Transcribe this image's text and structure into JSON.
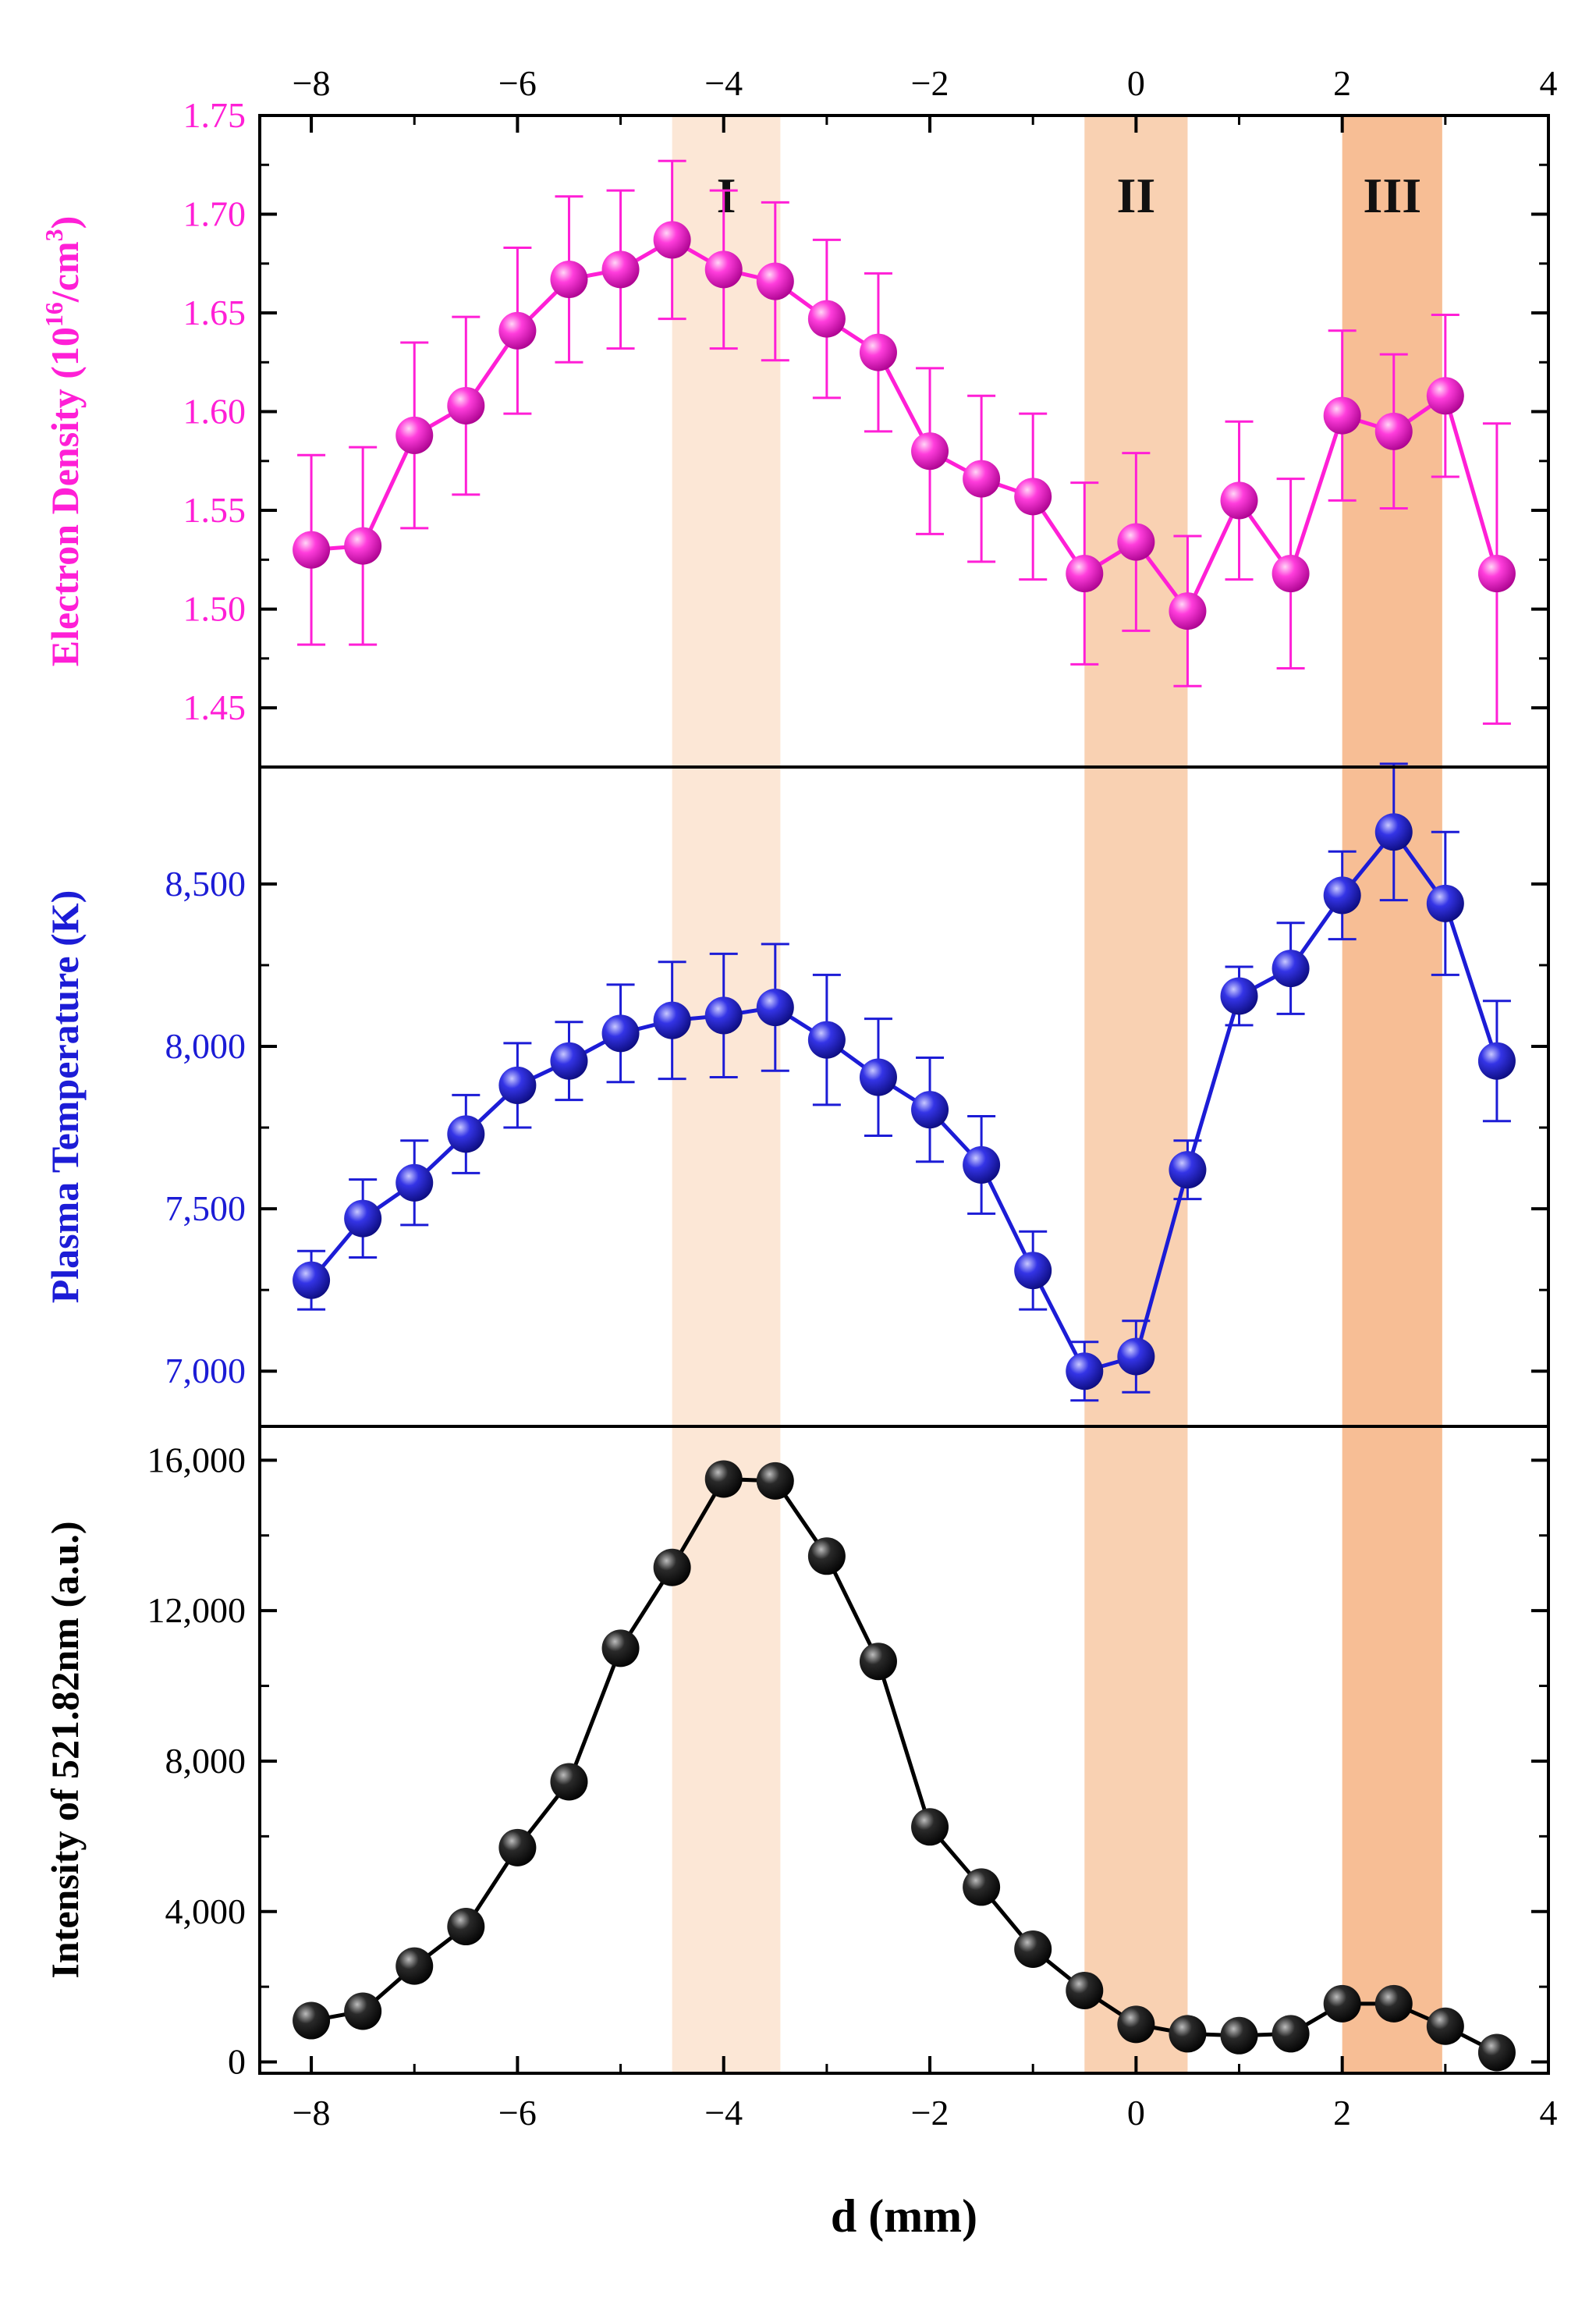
{
  "chart_data": [
    {
      "type": "line",
      "ylabel_pre": "Electron Density (10",
      "ylabel_sup1": "16",
      "ylabel_mid": "/cm",
      "ylabel_sup2": "3",
      "ylabel_post": ")",
      "ylim": [
        1.42,
        1.75
      ],
      "yticks": [
        1.45,
        1.5,
        1.55,
        1.6,
        1.65,
        1.7,
        1.75
      ],
      "ytick_labels": [
        "1.45",
        "1.50",
        "1.55",
        "1.60",
        "1.65",
        "1.70",
        "1.75"
      ],
      "color": "#ff1fd6",
      "x": [
        -8,
        -7.5,
        -7,
        -6.5,
        -6,
        -5.5,
        -5,
        -4.5,
        -4,
        -3.5,
        -3,
        -2.5,
        -2,
        -1.5,
        -1,
        -0.5,
        0,
        0.5,
        1,
        1.5,
        2,
        2.5,
        3,
        3.5
      ],
      "y": [
        1.53,
        1.532,
        1.588,
        1.603,
        1.641,
        1.667,
        1.672,
        1.687,
        1.672,
        1.666,
        1.647,
        1.63,
        1.58,
        1.566,
        1.557,
        1.518,
        1.534,
        1.499,
        1.555,
        1.518,
        1.598,
        1.59,
        1.608,
        1.518
      ],
      "err": [
        0.048,
        0.05,
        0.047,
        0.045,
        0.042,
        0.042,
        0.04,
        0.04,
        0.04,
        0.04,
        0.04,
        0.04,
        0.042,
        0.042,
        0.042,
        0.046,
        0.045,
        0.038,
        0.04,
        0.048,
        0.043,
        0.039,
        0.041,
        0.076
      ]
    },
    {
      "type": "line",
      "ylabel": "Plasma Temperature (K)",
      "ylim": [
        6830,
        8860
      ],
      "yticks": [
        7000,
        7500,
        8000,
        8500
      ],
      "ytick_labels": [
        "7,000",
        "7,500",
        "8,000",
        "8,500"
      ],
      "color": "#1c1cd6",
      "x": [
        -8,
        -7.5,
        -7,
        -6.5,
        -6,
        -5.5,
        -5,
        -4.5,
        -4,
        -3.5,
        -3,
        -2.5,
        -2,
        -1.5,
        -1,
        -0.5,
        0,
        0.5,
        1,
        1.5,
        2,
        2.5,
        3,
        3.5
      ],
      "y": [
        7280,
        7470,
        7580,
        7730,
        7880,
        7955,
        8040,
        8080,
        8095,
        8120,
        8020,
        7905,
        7805,
        7635,
        7310,
        7000,
        7045,
        7620,
        8155,
        8240,
        8465,
        8660,
        8440,
        7955
      ],
      "err": [
        90,
        120,
        130,
        120,
        130,
        120,
        150,
        180,
        190,
        195,
        200,
        180,
        160,
        150,
        120,
        90,
        110,
        90,
        90,
        140,
        135,
        210,
        220,
        185
      ]
    },
    {
      "type": "line",
      "ylabel": "Intensity of 521.82nm (a.u.)",
      "xlabel": "d (mm)",
      "ylim": [
        -300,
        16900
      ],
      "yticks": [
        0,
        4000,
        8000,
        12000,
        16000
      ],
      "ytick_labels": [
        "0",
        "4,000",
        "8,000",
        "12,000",
        "16,000"
      ],
      "color": "#000000",
      "x": [
        -8,
        -7.5,
        -7,
        -6.5,
        -6,
        -5.5,
        -5,
        -4.5,
        -4,
        -3.5,
        -3,
        -2.5,
        -2,
        -1.5,
        -1,
        -0.5,
        0,
        0.5,
        1,
        1.5,
        2,
        2.5,
        3,
        3.5
      ],
      "y": [
        1100,
        1350,
        2550,
        3600,
        5700,
        7450,
        11000,
        13150,
        15500,
        15450,
        13450,
        10650,
        6250,
        4650,
        3000,
        1900,
        1000,
        750,
        700,
        750,
        1550,
        1550,
        950,
        250
      ]
    }
  ],
  "x_axis": {
    "xlim": [
      -8.5,
      4
    ],
    "ticks": [
      -8,
      -6,
      -4,
      -2,
      0,
      2,
      4
    ],
    "tick_labels": [
      "−8",
      "−6",
      "−4",
      "−2",
      "0",
      "2",
      "4"
    ],
    "label": "d (mm)"
  },
  "regions": [
    {
      "label": "I",
      "x_start": -4.5,
      "x_end": -3.45,
      "color": "#fbe3cf"
    },
    {
      "label": "II",
      "x_start": -0.5,
      "x_end": 0.5,
      "color": "#f8c9a4"
    },
    {
      "label": "III",
      "x_start": 2.0,
      "x_end": 2.97,
      "color": "#f6b382"
    }
  ]
}
